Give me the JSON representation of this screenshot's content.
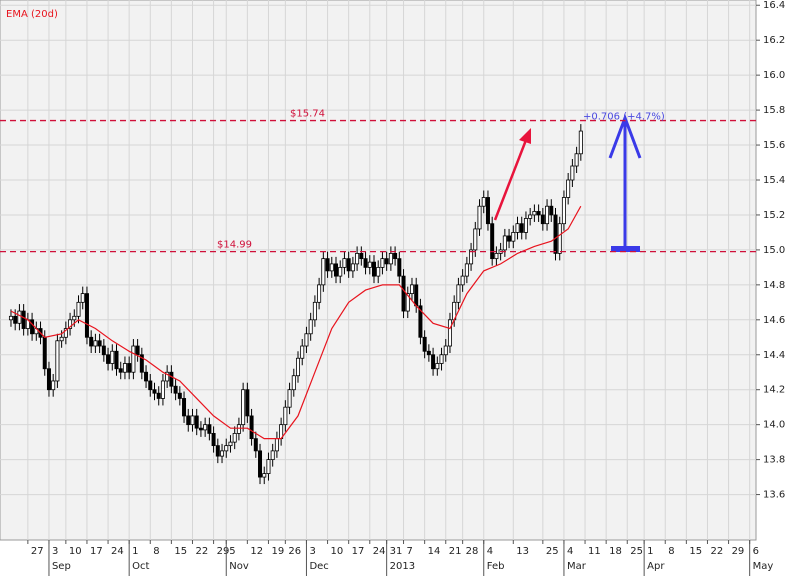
{
  "chart_data": {
    "type": "candlestick",
    "x": [
      -4,
      -3,
      -2,
      -1,
      0,
      1,
      2,
      3,
      4,
      5,
      6,
      7,
      8,
      9,
      10,
      11,
      12,
      13,
      14,
      15,
      16,
      17,
      18,
      19,
      20,
      21,
      22,
      23,
      24,
      25,
      26,
      27,
      28,
      29,
      30,
      31,
      32,
      33,
      34,
      35,
      36,
      37,
      38,
      39,
      40,
      41,
      42,
      43,
      44,
      45,
      46,
      47,
      48,
      49,
      50,
      51,
      52,
      53,
      54,
      55,
      56,
      57,
      58,
      59,
      60,
      61,
      62,
      63,
      64,
      65,
      66,
      67,
      68,
      69,
      70,
      71,
      72,
      73,
      74,
      75,
      76,
      77,
      78,
      79,
      80,
      81,
      82,
      83,
      84,
      85,
      86,
      87,
      88,
      89,
      90,
      91,
      92,
      93,
      94,
      95,
      96,
      97,
      98,
      99,
      100,
      101,
      102,
      103,
      104,
      105,
      106,
      107,
      108,
      109,
      110,
      111,
      112,
      113,
      114,
      115,
      116,
      117,
      118,
      119,
      120,
      121,
      122,
      123,
      124,
      125,
      126,
      127,
      128,
      129,
      130,
      131
    ],
    "open": [
      14.6,
      14.62,
      14.58,
      14.65,
      14.55,
      14.6,
      14.52,
      14.55,
      14.5,
      14.32,
      14.2,
      14.25,
      14.48,
      14.5,
      14.55,
      14.6,
      14.62,
      14.7,
      14.75,
      14.5,
      14.45,
      14.48,
      14.45,
      14.4,
      14.35,
      14.42,
      14.32,
      14.3,
      14.35,
      14.3,
      14.45,
      14.4,
      14.3,
      14.25,
      14.2,
      14.18,
      14.15,
      14.25,
      14.3,
      14.22,
      14.18,
      14.15,
      14.05,
      14.0,
      14.05,
      13.98,
      13.97,
      14.0,
      13.95,
      13.88,
      13.82,
      13.85,
      13.88,
      13.9,
      13.95,
      14.0,
      14.2,
      14.05,
      13.92,
      13.85,
      13.7,
      13.72,
      13.8,
      13.85,
      13.92,
      14.0,
      14.1,
      14.2,
      14.28,
      14.38,
      14.45,
      14.52,
      14.6,
      14.7,
      14.8,
      14.95,
      14.88,
      14.92,
      14.85,
      14.9,
      14.95,
      14.88,
      14.92,
      14.98,
      14.95,
      14.9,
      14.93,
      14.85,
      14.9,
      14.95,
      14.92,
      14.98,
      14.95,
      14.85,
      14.65,
      14.75,
      14.8,
      14.68,
      14.5,
      14.42,
      14.4,
      14.32,
      14.35,
      14.4,
      14.45,
      14.6,
      14.7,
      14.8,
      14.85,
      14.92,
      15.0,
      15.12,
      15.25,
      15.3,
      15.15,
      14.95,
      14.98,
      15.0,
      15.08,
      15.05,
      15.1,
      15.15,
      15.1,
      15.18,
      15.2,
      15.22,
      15.2,
      15.15,
      15.25,
      15.2,
      14.98,
      15.15,
      15.3,
      15.4,
      15.48,
      15.55
    ],
    "high": [
      14.66,
      14.66,
      14.69,
      14.69,
      14.64,
      14.64,
      14.59,
      14.59,
      14.54,
      14.36,
      14.29,
      14.52,
      14.54,
      14.59,
      14.64,
      14.66,
      14.74,
      14.79,
      14.79,
      14.54,
      14.52,
      14.52,
      14.49,
      14.44,
      14.46,
      14.46,
      14.36,
      14.39,
      14.39,
      14.49,
      14.49,
      14.44,
      14.34,
      14.29,
      14.24,
      14.22,
      14.29,
      14.34,
      14.34,
      14.26,
      14.22,
      14.19,
      14.09,
      14.09,
      14.09,
      14.02,
      14.04,
      14.04,
      13.99,
      13.92,
      13.89,
      13.92,
      13.94,
      13.99,
      14.04,
      14.24,
      14.24,
      14.09,
      13.96,
      13.89,
      13.76,
      13.84,
      13.89,
      13.96,
      14.04,
      14.14,
      14.24,
      14.32,
      14.42,
      14.49,
      14.56,
      14.64,
      14.74,
      14.84,
      14.99,
      14.99,
      14.96,
      14.96,
      14.94,
      14.99,
      14.99,
      14.96,
      15.02,
      15.02,
      14.99,
      14.97,
      14.97,
      14.94,
      14.99,
      14.99,
      15.02,
      15.02,
      14.99,
      14.89,
      14.79,
      14.84,
      14.84,
      14.72,
      14.54,
      14.46,
      14.44,
      14.39,
      14.44,
      14.49,
      14.64,
      14.74,
      14.84,
      14.89,
      14.96,
      15.04,
      15.16,
      15.29,
      15.34,
      15.34,
      15.19,
      15.02,
      15.04,
      15.12,
      15.12,
      15.14,
      15.19,
      15.19,
      15.22,
      15.24,
      15.26,
      15.26,
      15.24,
      15.29,
      15.29,
      15.24,
      15.19,
      15.34,
      15.44,
      15.52,
      15.59,
      15.72
    ],
    "low": [
      14.56,
      14.54,
      14.54,
      14.51,
      14.51,
      14.48,
      14.48,
      14.46,
      14.28,
      14.16,
      14.16,
      14.21,
      14.44,
      14.46,
      14.51,
      14.56,
      14.58,
      14.66,
      14.46,
      14.41,
      14.41,
      14.41,
      14.36,
      14.31,
      14.31,
      14.28,
      14.26,
      14.26,
      14.26,
      14.26,
      14.36,
      14.26,
      14.21,
      14.16,
      14.14,
      14.11,
      14.11,
      14.21,
      14.18,
      14.14,
      14.11,
      14.01,
      13.96,
      13.96,
      13.94,
      13.93,
      13.93,
      13.91,
      13.84,
      13.78,
      13.78,
      13.81,
      13.84,
      13.86,
      13.91,
      13.96,
      14.01,
      13.88,
      13.81,
      13.66,
      13.66,
      13.68,
      13.76,
      13.81,
      13.88,
      13.96,
      14.06,
      14.16,
      14.24,
      14.34,
      14.41,
      14.48,
      14.56,
      14.66,
      14.76,
      14.84,
      14.84,
      14.81,
      14.81,
      14.86,
      14.84,
      14.84,
      14.88,
      14.91,
      14.86,
      14.86,
      14.81,
      14.81,
      14.86,
      14.88,
      14.88,
      14.91,
      14.81,
      14.61,
      14.61,
      14.71,
      14.64,
      14.46,
      14.38,
      14.36,
      14.28,
      14.28,
      14.31,
      14.36,
      14.41,
      14.56,
      14.66,
      14.76,
      14.81,
      14.88,
      14.96,
      15.08,
      15.21,
      15.11,
      14.91,
      14.91,
      14.94,
      14.96,
      15.01,
      15.01,
      15.06,
      15.06,
      15.06,
      15.14,
      15.16,
      15.16,
      15.11,
      15.11,
      15.16,
      14.94,
      14.94,
      15.11,
      15.26,
      15.36,
      15.44,
      15.51
    ],
    "close": [
      14.62,
      14.58,
      14.65,
      14.55,
      14.6,
      14.52,
      14.55,
      14.5,
      14.32,
      14.2,
      14.25,
      14.48,
      14.5,
      14.55,
      14.6,
      14.62,
      14.7,
      14.75,
      14.5,
      14.45,
      14.48,
      14.45,
      14.4,
      14.35,
      14.42,
      14.32,
      14.3,
      14.35,
      14.3,
      14.45,
      14.4,
      14.3,
      14.25,
      14.2,
      14.18,
      14.15,
      14.25,
      14.3,
      14.22,
      14.18,
      14.15,
      14.05,
      14.0,
      14.05,
      13.98,
      13.97,
      14.0,
      13.95,
      13.88,
      13.82,
      13.85,
      13.88,
      13.9,
      13.95,
      14.0,
      14.2,
      14.05,
      13.92,
      13.85,
      13.7,
      13.72,
      13.8,
      13.85,
      13.92,
      14.0,
      14.1,
      14.2,
      14.28,
      14.38,
      14.45,
      14.52,
      14.6,
      14.7,
      14.8,
      14.95,
      14.88,
      14.92,
      14.85,
      14.9,
      14.95,
      14.88,
      14.92,
      14.98,
      14.95,
      14.9,
      14.93,
      14.85,
      14.9,
      14.95,
      14.92,
      14.98,
      14.95,
      14.85,
      14.65,
      14.75,
      14.8,
      14.68,
      14.5,
      14.42,
      14.4,
      14.32,
      14.35,
      14.4,
      14.45,
      14.6,
      14.7,
      14.8,
      14.85,
      14.92,
      15.0,
      15.12,
      15.25,
      15.3,
      15.15,
      14.95,
      14.98,
      15.0,
      15.08,
      15.05,
      15.1,
      15.15,
      15.1,
      15.18,
      15.2,
      15.22,
      15.2,
      15.15,
      15.25,
      15.2,
      14.98,
      15.15,
      15.3,
      15.4,
      15.48,
      15.55,
      15.68
    ],
    "up_color": "#ffffff",
    "down_color": "#000000",
    "ema": {
      "name": "EMA (20d)",
      "color": "#e8141e",
      "x": [
        -4,
        0,
        4,
        8,
        12,
        16,
        20,
        24,
        28,
        32,
        36,
        40,
        44,
        48,
        52,
        56,
        60,
        64,
        68,
        72,
        76,
        80,
        84,
        88,
        92,
        96,
        100,
        104,
        108,
        112,
        116,
        120,
        124,
        128,
        131
      ],
      "values": [
        14.65,
        14.6,
        14.5,
        14.52,
        14.6,
        14.55,
        14.48,
        14.42,
        14.37,
        14.3,
        14.25,
        14.15,
        14.05,
        13.98,
        13.98,
        13.92,
        13.92,
        14.05,
        14.3,
        14.55,
        14.7,
        14.77,
        14.8,
        14.8,
        14.68,
        14.58,
        14.55,
        14.75,
        14.88,
        14.92,
        14.98,
        15.02,
        15.05,
        15.12,
        15.25
      ]
    },
    "levels": [
      {
        "value": 15.74,
        "label": "$15.74"
      },
      {
        "value": 14.99,
        "label": "$14.99"
      }
    ],
    "level_color": "#d0103a",
    "annotation": {
      "text": "+0.706 (+4.7%)",
      "color": "#4a4ae0"
    },
    "xlim": [
      -6.6,
      172.5
    ],
    "ylim": [
      13.34,
      16.43
    ],
    "yticks": [
      13.6,
      13.8,
      {
        "value": 14,
        "label": "14.0"
      },
      14.2,
      14.4,
      14.6,
      14.8,
      {
        "value": 15,
        "label": "15.0"
      },
      15.2,
      15.4,
      15.6,
      15.8,
      {
        "value": 16,
        "label": "16.0"
      },
      16.2,
      16.4
    ],
    "xticks": [
      {
        "value": 0,
        "label": "27"
      },
      {
        "value": 5,
        "label": "3"
      },
      {
        "value": 9,
        "label": "10"
      },
      {
        "value": 14,
        "label": "17"
      },
      {
        "value": 19,
        "label": "24"
      },
      {
        "value": 24,
        "label": "1"
      },
      {
        "value": 29,
        "label": "8"
      },
      {
        "value": 34,
        "label": "15"
      },
      {
        "value": 39,
        "label": "22"
      },
      {
        "value": 44,
        "label": "29"
      },
      {
        "value": 47,
        "label": "5"
      },
      {
        "value": 52,
        "label": "12"
      },
      {
        "value": 57,
        "label": "19"
      },
      {
        "value": 61,
        "label": "26"
      },
      {
        "value": 66,
        "label": "3"
      },
      {
        "value": 71,
        "label": "10"
      },
      {
        "value": 76,
        "label": "17"
      },
      {
        "value": 81,
        "label": "24"
      },
      {
        "value": 85,
        "label": "31"
      },
      {
        "value": 89,
        "label": "7"
      },
      {
        "value": 94,
        "label": "14"
      },
      {
        "value": 99,
        "label": "21"
      },
      {
        "value": 103,
        "label": "28"
      },
      {
        "value": 108,
        "label": "4"
      },
      {
        "value": 115,
        "label": "13"
      },
      {
        "value": 122,
        "label": "25"
      },
      {
        "value": 127,
        "label": "4"
      },
      {
        "value": 132,
        "label": "11"
      },
      {
        "value": 137,
        "label": "18"
      },
      {
        "value": 142,
        "label": "25"
      },
      {
        "value": 146,
        "label": "1"
      },
      {
        "value": 151,
        "label": "8"
      },
      {
        "value": 156,
        "label": "15"
      },
      {
        "value": 161,
        "label": "22"
      },
      {
        "value": 166,
        "label": "29"
      },
      {
        "value": 171,
        "label": "6"
      }
    ],
    "months": [
      {
        "value": 5,
        "label": "Sep"
      },
      {
        "value": 24,
        "label": "Oct"
      },
      {
        "value": 47,
        "label": "Nov"
      },
      {
        "value": 66,
        "label": "Dec"
      },
      {
        "value": 85,
        "label": "2013"
      },
      {
        "value": 108,
        "label": "Feb"
      },
      {
        "value": 127,
        "label": "Mar"
      },
      {
        "value": 146,
        "label": "Apr"
      },
      {
        "value": 171,
        "label": "May"
      }
    ],
    "grid": true
  }
}
